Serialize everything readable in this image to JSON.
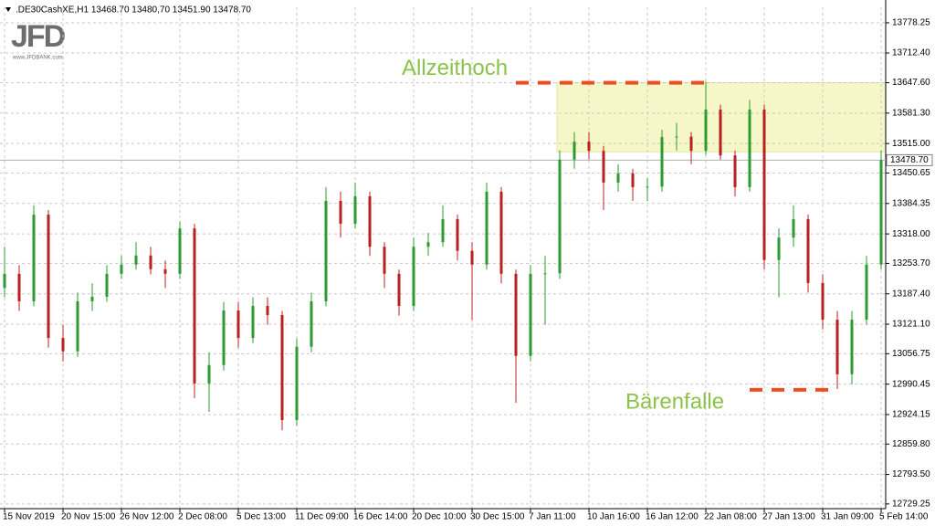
{
  "chart_data": {
    "type": "candlestick",
    "title": ".DE30CashXE,H1  13468.70 13480,70 13451.90 13478.70",
    "logo": {
      "name": "JFD",
      "url": "www.JFDBANK.com"
    },
    "up_color": "#2e9b2e",
    "down_color": "#b82020",
    "grid": true,
    "categories": [
      "15 Nov 2019",
      null,
      null,
      null,
      "20 Nov 15:00",
      null,
      null,
      null,
      "26 Nov 12:00",
      null,
      null,
      null,
      "2 Dec 08:00",
      null,
      null,
      null,
      "5 Dec 13:00",
      null,
      null,
      null,
      "11 Dec 09:00",
      null,
      null,
      null,
      "16 Dec 14:00",
      null,
      null,
      null,
      "20 Dec 10:00",
      null,
      null,
      null,
      "30 Dec 15:00",
      null,
      null,
      null,
      "7 Jan 11:00",
      null,
      null,
      null,
      "10 Jan 16:00",
      null,
      null,
      null,
      "16 Jan 12:00",
      null,
      null,
      null,
      "22 Jan 08:00",
      null,
      null,
      null,
      "27 Jan 13:00",
      null,
      null,
      null,
      "31 Jan 09:00",
      null,
      null,
      null,
      "5 Feb 14:00"
    ],
    "values": [
      [
        13200,
        13290,
        13180,
        13231
      ],
      [
        13231,
        13250,
        13150,
        13171
      ],
      [
        13171,
        13380,
        13160,
        13360
      ],
      [
        13360,
        13370,
        13070,
        13091
      ],
      [
        13091,
        13120,
        13040,
        13062
      ],
      [
        13062,
        13190,
        13050,
        13171
      ],
      [
        13171,
        13210,
        13150,
        13181
      ],
      [
        13181,
        13250,
        13170,
        13231
      ],
      [
        13231,
        13270,
        13220,
        13251
      ],
      [
        13251,
        13300,
        13240,
        13271
      ],
      [
        13271,
        13290,
        13230,
        13241
      ],
      [
        13241,
        13260,
        13200,
        13231
      ],
      [
        13231,
        13345,
        13220,
        13330
      ],
      [
        13330,
        13340,
        12960,
        12992
      ],
      [
        12992,
        13060,
        12930,
        13032
      ],
      [
        13032,
        13170,
        13020,
        13151
      ],
      [
        13151,
        13170,
        13070,
        13091
      ],
      [
        13091,
        13180,
        13080,
        13161
      ],
      [
        13161,
        13180,
        13120,
        13141
      ],
      [
        13141,
        13150,
        12890,
        12912
      ],
      [
        12912,
        13090,
        12900,
        13072
      ],
      [
        13072,
        13190,
        13060,
        13171
      ],
      [
        13171,
        13420,
        13160,
        13390
      ],
      [
        13390,
        13410,
        13310,
        13340
      ],
      [
        13340,
        13430,
        13330,
        13400
      ],
      [
        13400,
        13410,
        13270,
        13290
      ],
      [
        13290,
        13300,
        13200,
        13231
      ],
      [
        13231,
        13240,
        13140,
        13161
      ],
      [
        13161,
        13310,
        13150,
        13290
      ],
      [
        13290,
        13320,
        13270,
        13300
      ],
      [
        13300,
        13380,
        13290,
        13350
      ],
      [
        13350,
        13360,
        13260,
        13281
      ],
      [
        13281,
        13300,
        13130,
        13251
      ],
      [
        13251,
        13430,
        13240,
        13410
      ],
      [
        13410,
        13420,
        13210,
        13231
      ],
      [
        13231,
        13240,
        12950,
        13052
      ],
      [
        13052,
        13250,
        13040,
        13231
      ],
      [
        13231,
        13270,
        13120,
        13232
      ],
      [
        13232,
        13500,
        13220,
        13480
      ],
      [
        13480,
        13540,
        13460,
        13519
      ],
      [
        13519,
        13540,
        13480,
        13499
      ],
      [
        13499,
        13510,
        13370,
        13430
      ],
      [
        13430,
        13470,
        13410,
        13450
      ],
      [
        13450,
        13460,
        13390,
        13420
      ],
      [
        13420,
        13440,
        13390,
        13421
      ],
      [
        13421,
        13545,
        13410,
        13529
      ],
      [
        13529,
        13560,
        13500,
        13530
      ],
      [
        13530,
        13540,
        13470,
        13499
      ],
      [
        13499,
        13650,
        13490,
        13589
      ],
      [
        13589,
        13600,
        13480,
        13489
      ],
      [
        13489,
        13500,
        13400,
        13420
      ],
      [
        13420,
        13610,
        13410,
        13589
      ],
      [
        13589,
        13600,
        13240,
        13261
      ],
      [
        13261,
        13330,
        13180,
        13310
      ],
      [
        13310,
        13380,
        13290,
        13350
      ],
      [
        13350,
        13360,
        13190,
        13211
      ],
      [
        13211,
        13230,
        13110,
        13131
      ],
      [
        13131,
        13150,
        12980,
        13012
      ],
      [
        13012,
        13150,
        12990,
        13131
      ],
      [
        13131,
        13270,
        13120,
        13251
      ],
      [
        13251,
        13500,
        13240,
        13479
      ]
    ],
    "ylim": [
      12719,
      13812
    ],
    "yticks": [
      {
        "value": 13778.25,
        "label": "13778.25"
      },
      {
        "value": 13712.4,
        "label": "13712.40"
      },
      {
        "value": 13647.6,
        "label": "13647.60"
      },
      {
        "value": 13581.3,
        "label": "13581.30"
      },
      {
        "value": 13515,
        "label": "13515.00"
      },
      {
        "value": 13450.65,
        "label": "13450.65"
      },
      {
        "value": 13384.35,
        "label": "13384.35"
      },
      {
        "value": 13318,
        "label": "13318.00"
      },
      {
        "value": 13253.7,
        "label": "13253.70"
      },
      {
        "value": 13187.4,
        "label": "13187.40"
      },
      {
        "value": 13121.1,
        "label": "13121.10"
      },
      {
        "value": 13056.75,
        "label": "13056.75"
      },
      {
        "value": 12990.45,
        "label": "12990.45"
      },
      {
        "value": 12924.15,
        "label": "12924.15"
      },
      {
        "value": 12859.8,
        "label": "12859.80"
      },
      {
        "value": 12793.5,
        "label": "12793.50"
      },
      {
        "value": 12729.25,
        "label": "12729.25"
      }
    ],
    "last": {
      "value": 13478.7,
      "label": "13478.70"
    },
    "zone": [
      13497,
      13647.6
    ],
    "annotations": [
      {
        "text": "Allzeithoch",
        "level": 13647.6,
        "color": "#8bc34a",
        "line_color": "#f44a1f"
      },
      {
        "text": "Bärenfalle",
        "level": 12978,
        "color": "#8bc34a",
        "line_color": "#f44a1f"
      }
    ]
  }
}
